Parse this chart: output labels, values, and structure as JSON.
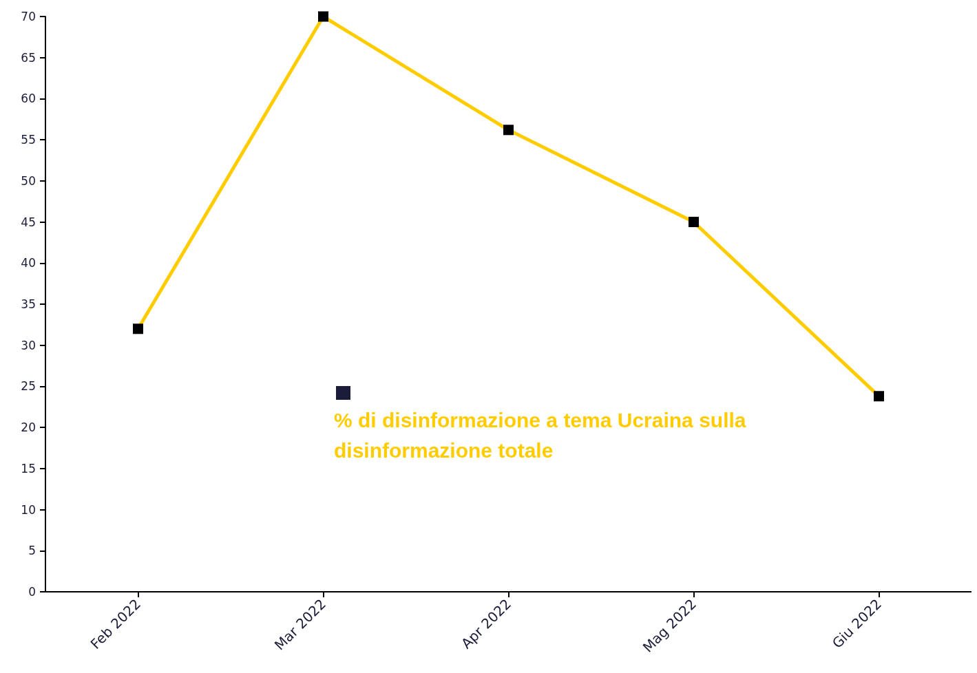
{
  "chart_data": {
    "type": "line",
    "categories": [
      "Feb 2022",
      "Mar 2022",
      "Apr 2022",
      "Mag 2022",
      "Giu 2022"
    ],
    "series": [
      {
        "name": "% di disinformazione a tema Ucraina sulla disinformazione totale",
        "color": "#ffcc00",
        "values": [
          32,
          70,
          56.2,
          45,
          23.8
        ]
      }
    ],
    "ylim": [
      0,
      70
    ],
    "yticks": [
      0,
      5,
      10,
      15,
      20,
      25,
      30,
      35,
      40,
      45,
      50,
      55,
      60,
      65,
      70
    ],
    "grid": false,
    "legend": "center",
    "marker": "square",
    "line_style": "solid"
  }
}
